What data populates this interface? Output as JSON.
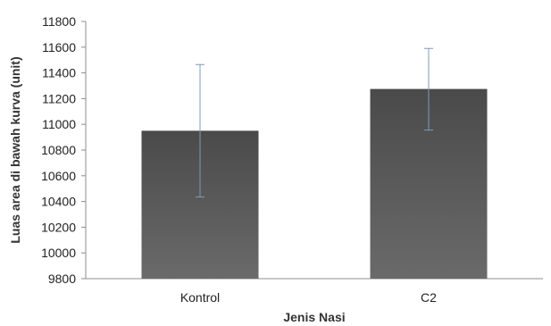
{
  "chart_data": {
    "type": "bar",
    "categories": [
      "Kontrol",
      "C2"
    ],
    "values": [
      10950,
      11275
    ],
    "error_upper": [
      11465,
      11590
    ],
    "error_lower": [
      10435,
      10955
    ],
    "xlabel": "Jenis Nasi",
    "ylabel": "Luas area di bawah kurva (unit)",
    "ylim": [
      9800,
      11800
    ],
    "yticks": [
      9800,
      10000,
      10200,
      10400,
      10600,
      10800,
      11000,
      11200,
      11400,
      11600,
      11800
    ],
    "grid": false,
    "legend": "none",
    "colors": {
      "bar": "#5a5a5a",
      "error_bar": "#7f9bb8",
      "axis": "#8c8c8c"
    }
  }
}
